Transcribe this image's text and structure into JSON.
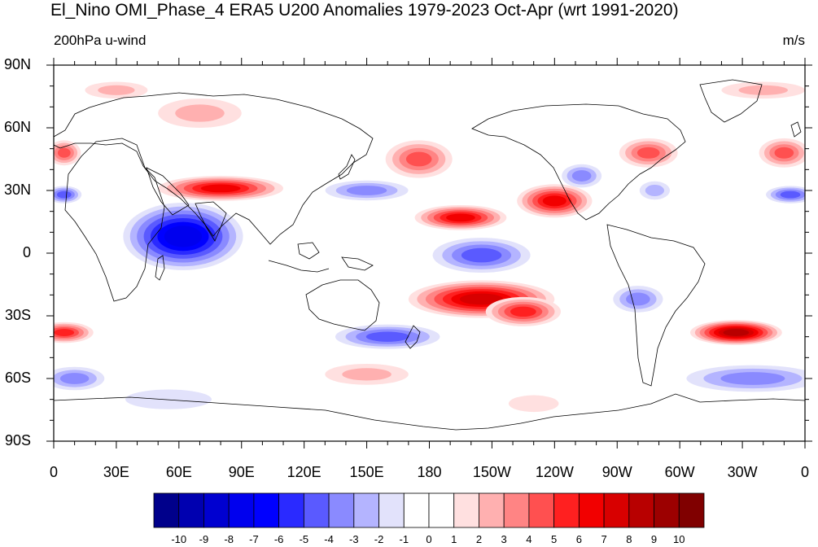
{
  "title": "El_Nino OMI_Phase_4 ERA5 U200 Anomalies 1979-2023 Oct-Apr (wrt 1991-2020)",
  "left_subtitle": "200hPa u-wind",
  "right_subtitle": "m/s",
  "lat_labels": [
    "90N",
    "60N",
    "30N",
    "0",
    "30S",
    "60S",
    "90S"
  ],
  "lon_labels": [
    "0",
    "30E",
    "60E",
    "90E",
    "120E",
    "150E",
    "180",
    "150W",
    "120W",
    "90W",
    "60W",
    "30W",
    "0"
  ],
  "colorbar": {
    "labels": [
      "-10",
      "-9",
      "-8",
      "-7",
      "-6",
      "-5",
      "-4",
      "-3",
      "-2",
      "-1",
      "0",
      "1",
      "2",
      "3",
      "4",
      "5",
      "6",
      "7",
      "8",
      "9",
      "10"
    ],
    "colors": [
      "#00008b",
      "#0000b0",
      "#0000d0",
      "#0000ee",
      "#0000ff",
      "#2a2aff",
      "#5a5aff",
      "#8a8aff",
      "#b4b4ff",
      "#e2e2fb",
      "#ffffff",
      "#ffffff",
      "#ffe0e0",
      "#ffb0b0",
      "#ff8484",
      "#ff5050",
      "#ff2020",
      "#f20000",
      "#d80000",
      "#b80000",
      "#9c0000",
      "#800000"
    ]
  },
  "map_data": {
    "type": "filled-contour-map",
    "variable": "U200 anomaly",
    "units": "m/s",
    "lat_range": [
      -90,
      90
    ],
    "lon_range": [
      0,
      360
    ],
    "features": [
      {
        "lon": 62,
        "lat": 8,
        "value": -8,
        "rlon": 32,
        "rlat": 18
      },
      {
        "lon": 150,
        "lat": 30,
        "value": -4,
        "rlon": 25,
        "rlat": 6
      },
      {
        "lon": 205,
        "lat": -1,
        "value": -5,
        "rlon": 28,
        "rlat": 10
      },
      {
        "lon": 253,
        "lat": 37,
        "value": -4,
        "rlon": 12,
        "rlat": 7
      },
      {
        "lon": 288,
        "lat": 30,
        "value": -3,
        "rlon": 10,
        "rlat": 6
      },
      {
        "lon": 353,
        "lat": 28,
        "value": -5,
        "rlon": 14,
        "rlat": 5
      },
      {
        "lon": 5,
        "lat": 28,
        "value": -5,
        "rlon": 10,
        "rlat": 5
      },
      {
        "lon": 160,
        "lat": -40,
        "value": -5,
        "rlon": 30,
        "rlat": 7
      },
      {
        "lon": 280,
        "lat": -22,
        "value": -4,
        "rlon": 15,
        "rlat": 8
      },
      {
        "lon": 335,
        "lat": -60,
        "value": -4,
        "rlon": 40,
        "rlat": 8
      },
      {
        "lon": 10,
        "lat": -60,
        "value": -4,
        "rlon": 18,
        "rlat": 7
      },
      {
        "lon": 80,
        "lat": 31,
        "value": 6,
        "rlon": 30,
        "rlat": 6
      },
      {
        "lon": 195,
        "lat": 17,
        "value": 6,
        "rlon": 22,
        "rlat": 6
      },
      {
        "lon": 240,
        "lat": 25,
        "value": 6,
        "rlon": 18,
        "rlat": 8
      },
      {
        "lon": 205,
        "lat": -22,
        "value": 7,
        "rlon": 35,
        "rlat": 9
      },
      {
        "lon": 225,
        "lat": -28,
        "value": 5,
        "rlon": 18,
        "rlat": 7
      },
      {
        "lon": 327,
        "lat": -38,
        "value": 8,
        "rlon": 22,
        "rlat": 6
      },
      {
        "lon": 5,
        "lat": -38,
        "value": 5,
        "rlon": 14,
        "rlat": 5
      },
      {
        "lon": 175,
        "lat": 45,
        "value": 4,
        "rlon": 16,
        "rlat": 9
      },
      {
        "lon": 285,
        "lat": 48,
        "value": 4,
        "rlon": 14,
        "rlat": 7
      },
      {
        "lon": 350,
        "lat": 48,
        "value": 4,
        "rlon": 12,
        "rlat": 7
      },
      {
        "lon": 5,
        "lat": 48,
        "value": 4,
        "rlon": 8,
        "rlat": 6
      },
      {
        "lon": 70,
        "lat": 67,
        "value": 2,
        "rlon": 20,
        "rlat": 7
      },
      {
        "lon": 150,
        "lat": -58,
        "value": 2,
        "rlon": 20,
        "rlat": 5
      },
      {
        "lon": 230,
        "lat": -72,
        "value": 1,
        "rlon": 12,
        "rlat": 4
      },
      {
        "lon": 30,
        "lat": 78,
        "value": 2,
        "rlon": 15,
        "rlat": 4
      },
      {
        "lon": 340,
        "lat": 78,
        "value": 2,
        "rlon": 20,
        "rlat": 4
      },
      {
        "lon": 55,
        "lat": -70,
        "value": -2,
        "rlon": 35,
        "rlat": 8
      }
    ]
  }
}
